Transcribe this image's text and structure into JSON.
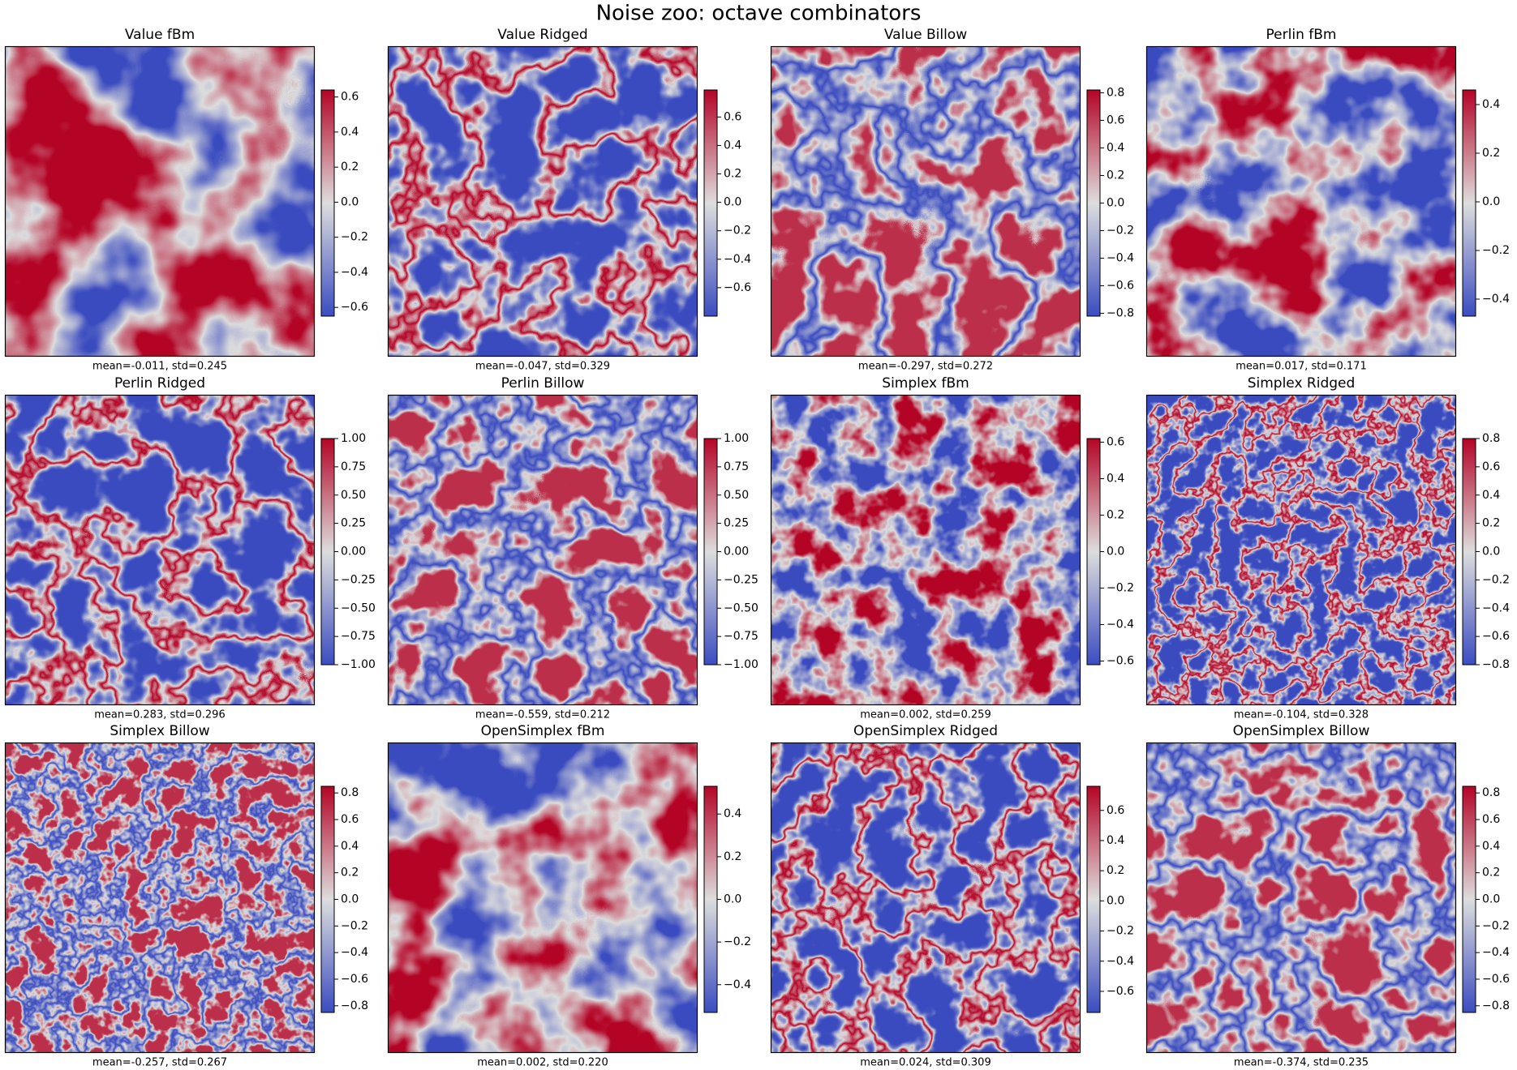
{
  "title": "Noise zoo: octave combinators",
  "colormap": [
    "#3b4cc0",
    "#dddddd",
    "#b40426"
  ],
  "chart_data": [
    {
      "type": "heatmap",
      "title": "Value fBm",
      "caption": "mean=-0.011, std=0.245",
      "ylim": [
        -0.65,
        0.64
      ],
      "yticks": [
        {
          "value": -0.6,
          "label": "−0.6"
        },
        {
          "value": -0.4,
          "label": "−0.4"
        },
        {
          "value": -0.2,
          "label": "−0.2"
        },
        {
          "value": 0,
          "label": "0.0"
        },
        0.2,
        0.4,
        0.6
      ]
    },
    {
      "type": "heatmap",
      "title": "Value Ridged",
      "caption": "mean=-0.047, std=0.329",
      "ylim": [
        -0.8,
        0.79
      ],
      "yticks": [
        {
          "value": -0.6,
          "label": "−0.6"
        },
        {
          "value": -0.4,
          "label": "−0.4"
        },
        {
          "value": -0.2,
          "label": "−0.2"
        },
        {
          "value": 0,
          "label": "0.0"
        },
        0.2,
        0.4,
        0.6
      ]
    },
    {
      "type": "heatmap",
      "title": "Value Billow",
      "caption": "mean=-0.297, std=0.272",
      "ylim": [
        -0.82,
        0.82
      ],
      "yticks": [
        {
          "value": -0.8,
          "label": "−0.8"
        },
        {
          "value": -0.6,
          "label": "−0.6"
        },
        {
          "value": -0.4,
          "label": "−0.4"
        },
        {
          "value": -0.2,
          "label": "−0.2"
        },
        {
          "value": 0,
          "label": "0.0"
        },
        0.2,
        0.4,
        0.6,
        0.8
      ]
    },
    {
      "type": "heatmap",
      "title": "Perlin fBm",
      "caption": "mean=0.017, std=0.171",
      "ylim": [
        -0.47,
        0.46
      ],
      "yticks": [
        {
          "value": -0.4,
          "label": "−0.4"
        },
        {
          "value": -0.2,
          "label": "−0.2"
        },
        {
          "value": 0,
          "label": "0.0"
        },
        0.2,
        0.4
      ]
    },
    {
      "type": "heatmap",
      "title": "Perlin Ridged",
      "caption": "mean=0.283, std=0.296",
      "ylim": [
        -1,
        1
      ],
      "yticks": [
        {
          "value": -1,
          "label": "−1.00"
        },
        {
          "value": -0.75,
          "label": "−0.75"
        },
        {
          "value": -0.5,
          "label": "−0.50"
        },
        {
          "value": -0.25,
          "label": "−0.25"
        },
        {
          "value": 0,
          "label": "0.00"
        },
        0.25,
        {
          "value": 0.5,
          "label": "0.50"
        },
        0.75,
        {
          "value": 1,
          "label": "1.00"
        }
      ]
    },
    {
      "type": "heatmap",
      "title": "Perlin Billow",
      "caption": "mean=-0.559, std=0.212",
      "ylim": [
        -1,
        1
      ],
      "yticks": [
        {
          "value": -1,
          "label": "−1.00"
        },
        {
          "value": -0.75,
          "label": "−0.75"
        },
        {
          "value": -0.5,
          "label": "−0.50"
        },
        {
          "value": -0.25,
          "label": "−0.25"
        },
        {
          "value": 0,
          "label": "0.00"
        },
        0.25,
        {
          "value": 0.5,
          "label": "0.50"
        },
        0.75,
        {
          "value": 1,
          "label": "1.00"
        }
      ]
    },
    {
      "type": "heatmap",
      "title": "Simplex fBm",
      "caption": "mean=0.002, std=0.259",
      "ylim": [
        -0.62,
        0.62
      ],
      "yticks": [
        {
          "value": -0.6,
          "label": "−0.6"
        },
        {
          "value": -0.4,
          "label": "−0.4"
        },
        {
          "value": -0.2,
          "label": "−0.2"
        },
        {
          "value": 0,
          "label": "0.0"
        },
        0.2,
        0.4,
        0.6
      ]
    },
    {
      "type": "heatmap",
      "title": "Simplex Ridged",
      "caption": "mean=-0.104, std=0.328",
      "ylim": [
        -0.8,
        0.8
      ],
      "yticks": [
        {
          "value": -0.8,
          "label": "−0.8"
        },
        {
          "value": -0.6,
          "label": "−0.6"
        },
        {
          "value": -0.4,
          "label": "−0.4"
        },
        {
          "value": -0.2,
          "label": "−0.2"
        },
        {
          "value": 0,
          "label": "0.0"
        },
        0.2,
        0.4,
        0.6,
        0.8
      ]
    },
    {
      "type": "heatmap",
      "title": "Simplex Billow",
      "caption": "mean=-0.257, std=0.267",
      "ylim": [
        -0.85,
        0.85
      ],
      "yticks": [
        {
          "value": -0.8,
          "label": "−0.8"
        },
        {
          "value": -0.6,
          "label": "−0.6"
        },
        {
          "value": -0.4,
          "label": "−0.4"
        },
        {
          "value": -0.2,
          "label": "−0.2"
        },
        {
          "value": 0,
          "label": "0.0"
        },
        0.2,
        0.4,
        0.6,
        0.8
      ]
    },
    {
      "type": "heatmap",
      "title": "OpenSimplex fBm",
      "caption": "mean=0.002, std=0.220",
      "ylim": [
        -0.53,
        0.53
      ],
      "yticks": [
        {
          "value": -0.4,
          "label": "−0.4"
        },
        {
          "value": -0.2,
          "label": "−0.2"
        },
        {
          "value": 0,
          "label": "0.0"
        },
        0.2,
        0.4
      ]
    },
    {
      "type": "heatmap",
      "title": "OpenSimplex Ridged",
      "caption": "mean=0.024, std=0.309",
      "ylim": [
        -0.74,
        0.76
      ],
      "yticks": [
        {
          "value": -0.6,
          "label": "−0.6"
        },
        {
          "value": -0.4,
          "label": "−0.4"
        },
        {
          "value": -0.2,
          "label": "−0.2"
        },
        {
          "value": 0,
          "label": "0.0"
        },
        0.2,
        0.4,
        0.6
      ]
    },
    {
      "type": "heatmap",
      "title": "OpenSimplex Billow",
      "caption": "mean=-0.374, std=0.235",
      "ylim": [
        -0.85,
        0.85
      ],
      "yticks": [
        {
          "value": -0.8,
          "label": "−0.8"
        },
        {
          "value": -0.6,
          "label": "−0.6"
        },
        {
          "value": -0.4,
          "label": "−0.4"
        },
        {
          "value": -0.2,
          "label": "−0.2"
        },
        {
          "value": 0,
          "label": "0.0"
        },
        0.2,
        0.4,
        0.6,
        0.8
      ]
    }
  ]
}
